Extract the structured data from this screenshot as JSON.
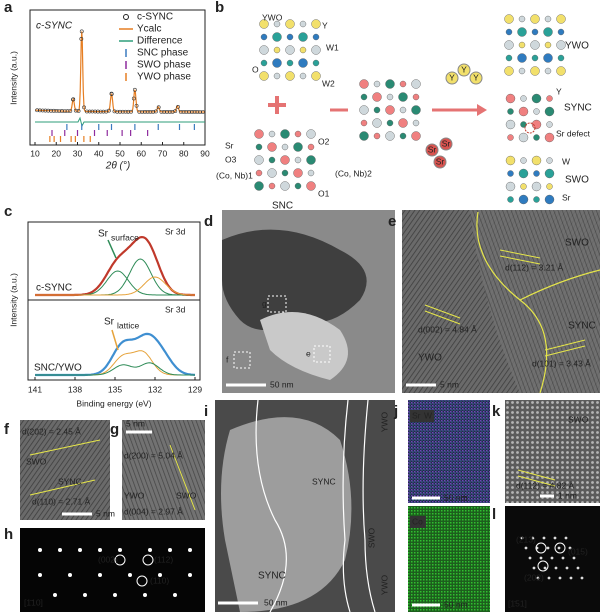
{
  "figure": {
    "a": {
      "label": "a",
      "sample": "c-SYNC",
      "legend": [
        "c-SYNC",
        "Ycalc",
        "Difference",
        "SNC phase",
        "SWO phase",
        "YWO phase"
      ],
      "y_axis": "Intensity (a.u.)",
      "x_axis": "2θ (°)",
      "x_ticks": [
        "10",
        "20",
        "30",
        "40",
        "50",
        "60",
        "70",
        "80",
        "90"
      ]
    },
    "b": {
      "label": "b",
      "ywo": "YWO",
      "y": "Y",
      "w1": "W1",
      "o": "O",
      "w2": "W2",
      "sr": "Sr",
      "o3": "O3",
      "conb1": "(Co, Nb)1",
      "o2": "O2",
      "conb2": "(Co, Nb)2",
      "o1": "O1",
      "snc": "SNC",
      "y_ions": [
        "Y",
        "Y",
        "Y"
      ],
      "sr_ions": [
        "Sr",
        "Sr",
        "Sr"
      ],
      "ywo_product": "YWO",
      "sync": "SYNC",
      "y_site": "Y",
      "sr_defect": "Sr defect",
      "w": "W",
      "swo": "SWO",
      "sr_site": "Sr"
    },
    "c": {
      "label": "c",
      "top_sample": "c-SYNC",
      "top_orbital": "Sr 3d",
      "sr_surface": "Sr",
      "surface_sub": "surface",
      "bottom_sample": "SNC/YWO",
      "bottom_orbital": "Sr 3d",
      "sr_lattice": "Sr",
      "lattice_sub": "lattice",
      "y_axis": "Intensity (a.u.)",
      "x_axis": "Binding energy (eV)",
      "x_ticks": [
        "141",
        "138",
        "135",
        "132",
        "129"
      ]
    },
    "d": {
      "label": "d",
      "marker_g": "g",
      "marker_f": "f",
      "marker_e": "e",
      "scale": "50 nm"
    },
    "e": {
      "label": "e",
      "swo": "SWO",
      "d112": "d(112) = 3.21 Å",
      "d002": "d(002) = 4.84 Å",
      "sync": "SYNC",
      "ywo": "YWO",
      "d101": "d(101) = 3.43 Å",
      "scale": "5 nm"
    },
    "f": {
      "label": "f",
      "d202": "d(202) = 2.45 Å",
      "swo": "SWO",
      "sync": "SYNC",
      "d110": "d(110) = 2.71 Å",
      "scale": "5 nm"
    },
    "g": {
      "label": "g",
      "scale": "5 nm",
      "d200": "d(200) = 5.04 Å",
      "ywo": "YWO",
      "swo": "SWO",
      "d004": "d(004) = 2.97 Å"
    },
    "h": {
      "label": "h",
      "spots": [
        "(002)",
        "(112)",
        "(110)"
      ],
      "zone": "[1̄10]"
    },
    "i": {
      "label": "i",
      "ywo_top": "YWO",
      "sync_top": "SYNC",
      "swo": "SWO",
      "sync": "SYNC",
      "ywo_bottom": "YWO",
      "scale": "50 nm"
    },
    "j": {
      "label": "j",
      "sr": "Sr",
      "w": "W",
      "scale_top": "50 nm",
      "co": "Co",
      "scale_bottom": "50 nm"
    },
    "k": {
      "label": "k",
      "swo": "SWO",
      "d112": "d(112) = 4.82 Å",
      "scale": "1 nm"
    },
    "l": {
      "label": "l",
      "spots": [
        "(213)",
        "(015)",
        "(202)"
      ],
      "zone": "[1̄51]"
    }
  }
}
